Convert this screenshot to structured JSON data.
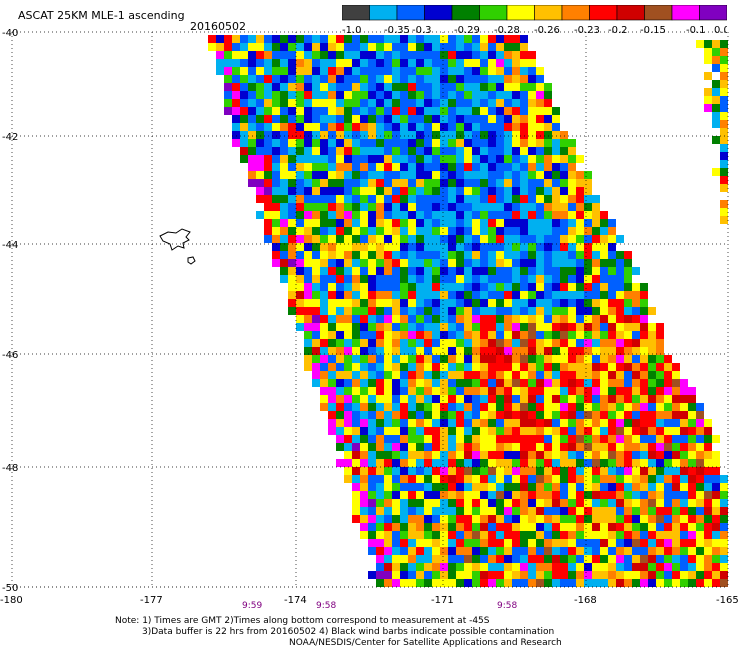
{
  "title": "ASCAT 25KM MLE-1 ascending",
  "date": "20160502",
  "colors": {
    "scale": [
      "#404040",
      "#00b0f0",
      "#0060ff",
      "#0000d0",
      "#008000",
      "#30d000",
      "#ffff00",
      "#ffc000",
      "#ff8000",
      "#ff0000",
      "#d00000",
      "#a05020",
      "#ff00ff",
      "#8000c0"
    ]
  },
  "colorbar_labels": [
    "-1.0",
    "-0.35",
    "-0.3",
    "-0.29",
    "-0.28",
    "-0.26",
    "-0.23",
    "-0.2",
    "-0.15",
    "-0.1",
    "0.0"
  ],
  "lat_labels": [
    "-40",
    "-42",
    "-44",
    "-46",
    "-48",
    "-50"
  ],
  "lon_labels": [
    "-180",
    "-177",
    "-174",
    "-171",
    "-168",
    "-165"
  ],
  "time_labels": [
    "9:59",
    "9:58",
    "9:58"
  ],
  "notes": [
    "Note: 1) Times are GMT 2)Times along bottom correspond to measurement at -45S",
    "3)Data buffer is 22 hrs from 20160502 4) Black wind barbs indicate possible contamination",
    "NOAA/NESDIS/Center for Satellite Applications and Research"
  ]
}
